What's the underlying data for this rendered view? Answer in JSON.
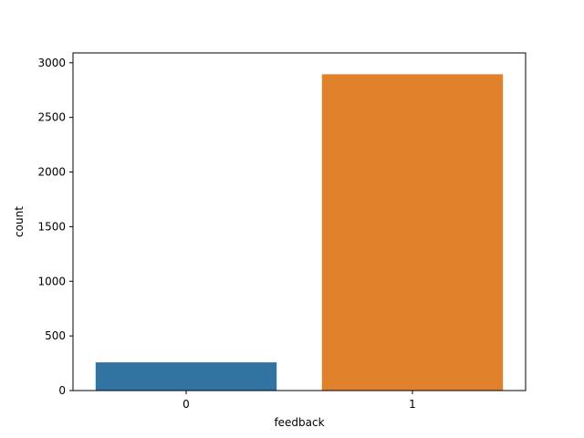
{
  "chart_data": {
    "type": "bar",
    "categories": [
      "0",
      "1"
    ],
    "values": [
      258,
      2895
    ],
    "xlabel": "feedback",
    "ylabel": "count",
    "ylim": [
      0,
      3090
    ],
    "yticks": [
      0,
      500,
      1000,
      1500,
      2000,
      2500,
      3000
    ],
    "grid": false,
    "legend": "none",
    "colors": [
      "#3274a1",
      "#e1812c"
    ]
  }
}
